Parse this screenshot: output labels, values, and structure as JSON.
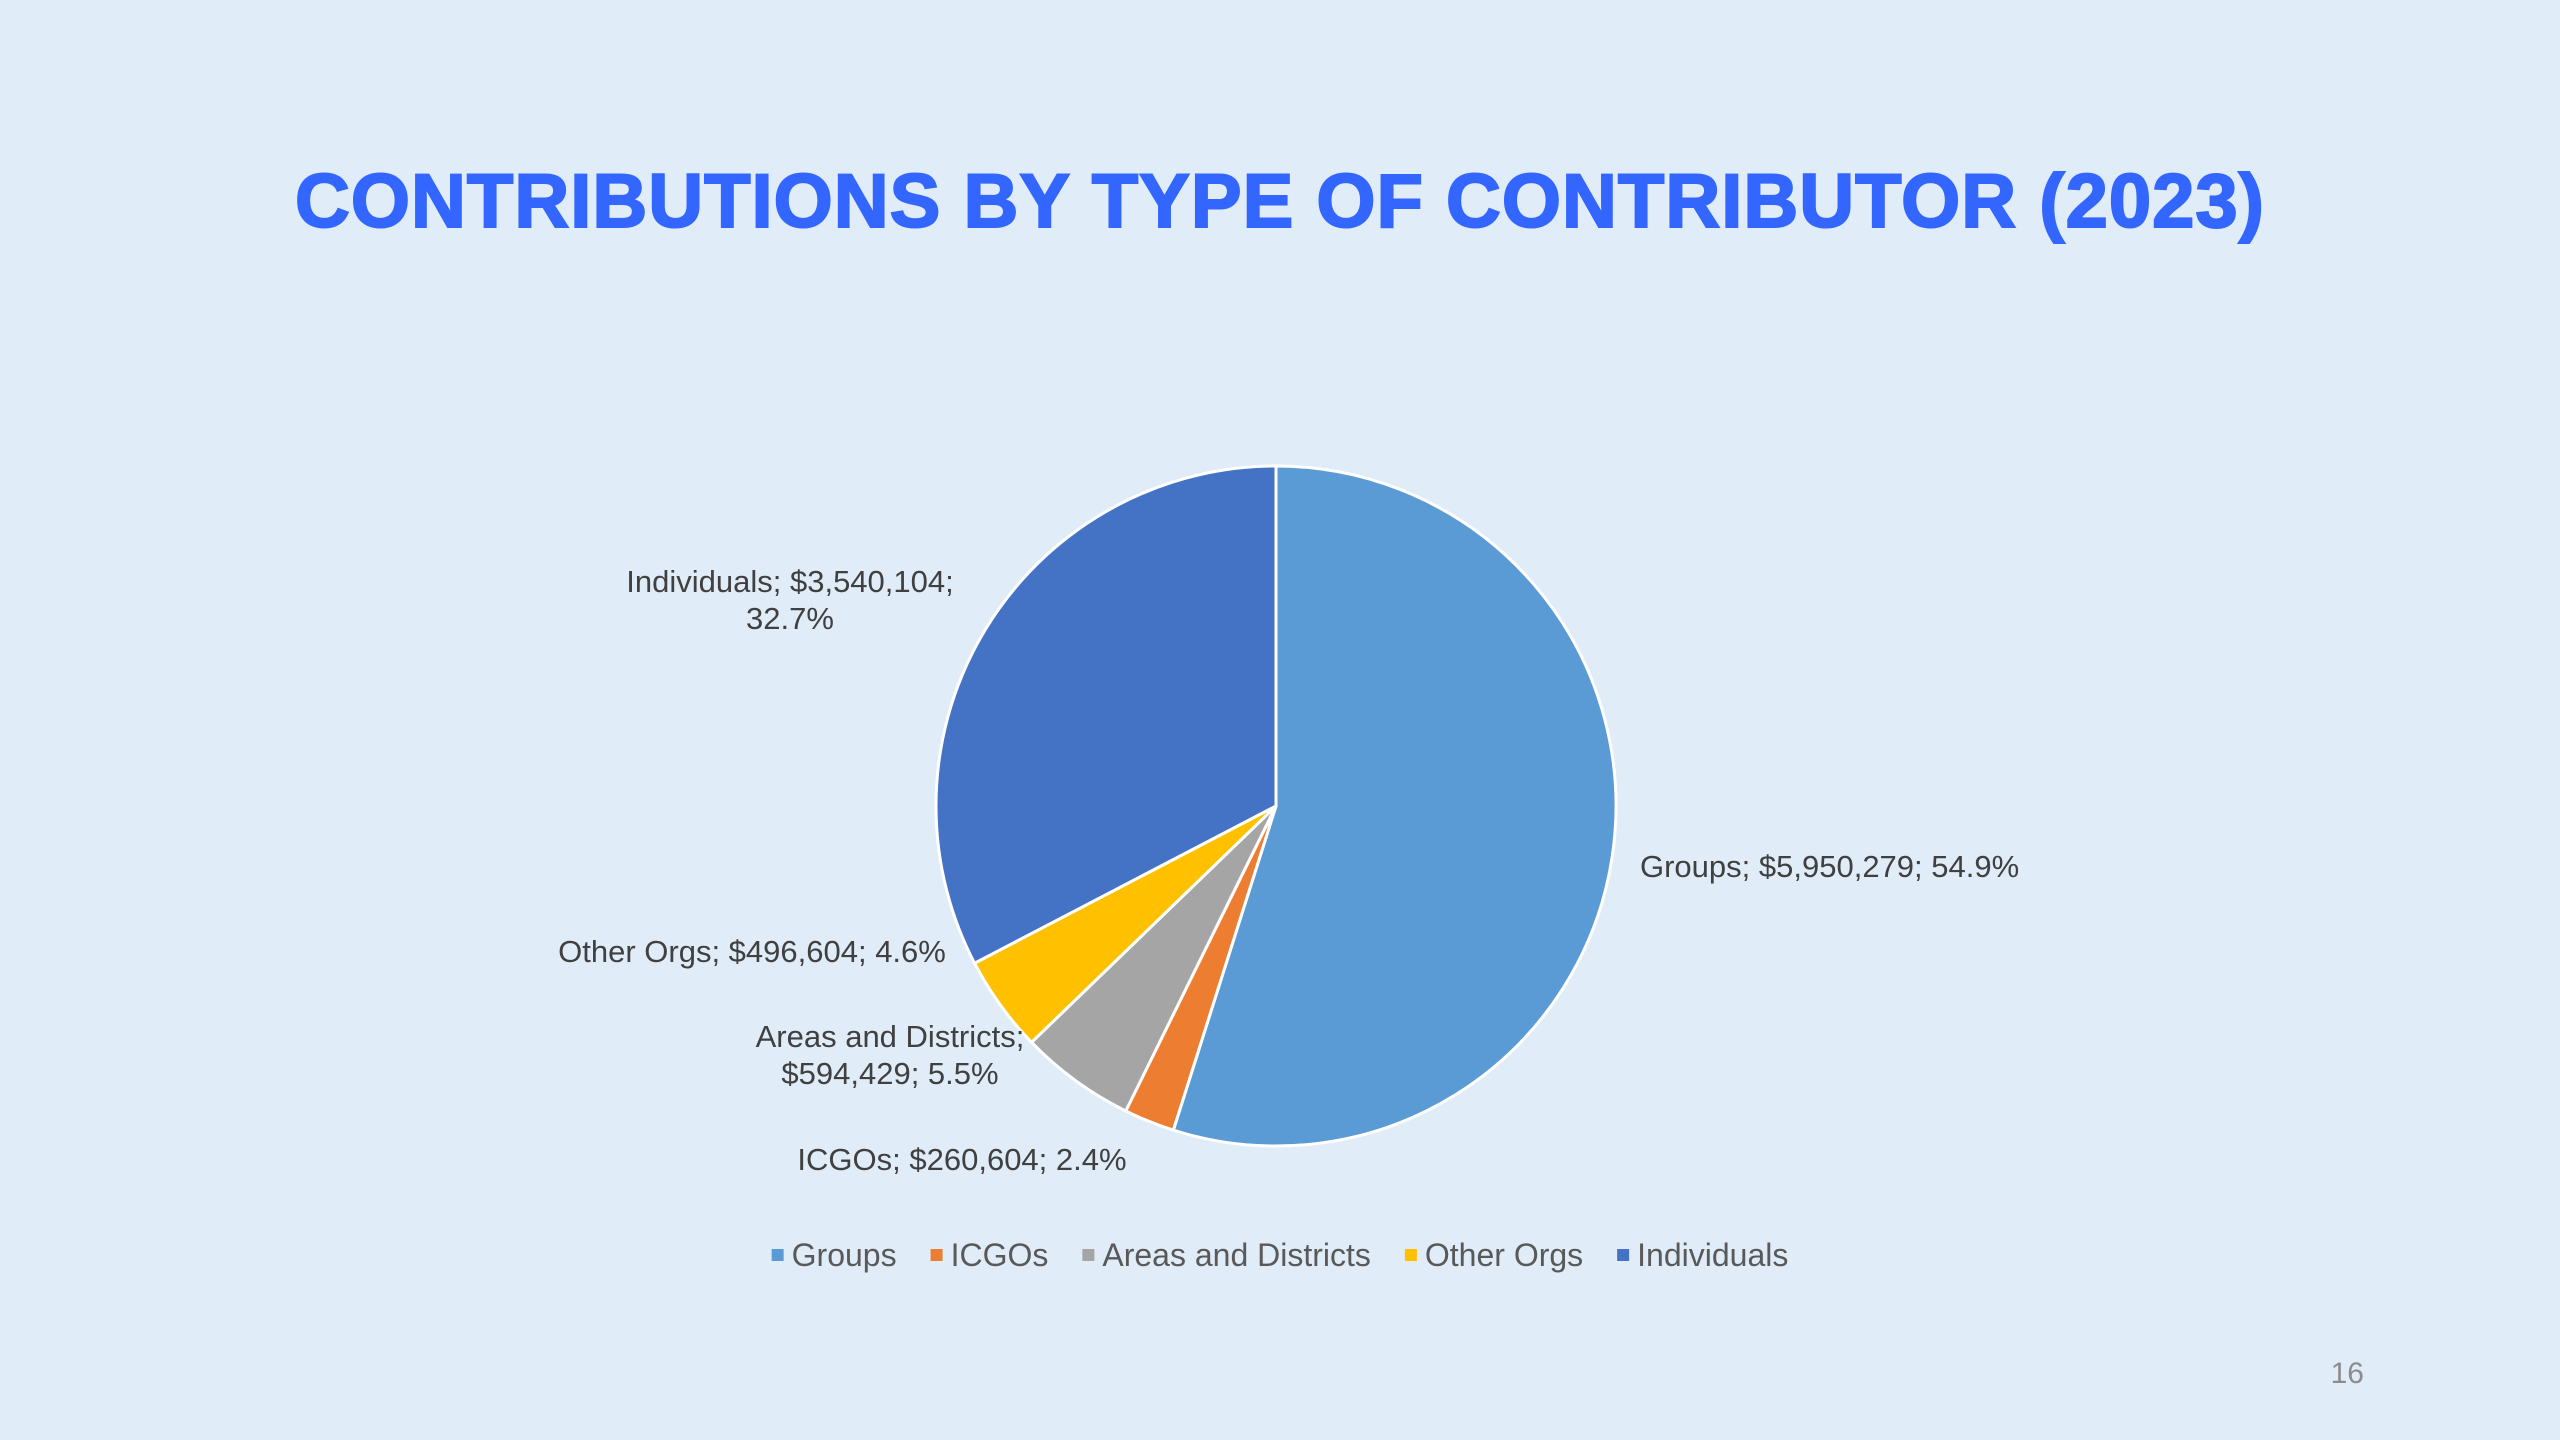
{
  "slide": {
    "title": "CONTRIBUTIONS BY TYPE OF CONTRIBUTOR (2023)",
    "page_number": "16",
    "title_color": "#3366ff",
    "background_color": "#e0ecf8"
  },
  "chart_data": {
    "type": "pie",
    "title": "",
    "legend_position": "bottom",
    "start_angle_deg": 0,
    "direction": "clockwise",
    "slices": [
      {
        "label": "Groups",
        "value": 5950279,
        "value_text": "$5,950,279",
        "percent": "54.9%",
        "percent_value": 54.9,
        "color": "#5b9bd5",
        "data_label_lines": [
          "Groups; $5,950,279; 54.9%"
        ]
      },
      {
        "label": "ICGOs",
        "value": 260604,
        "value_text": "$260,604",
        "percent": "2.4%",
        "percent_value": 2.4,
        "color": "#ed7d31",
        "data_label_lines": [
          "ICGOs; $260,604; 2.4%"
        ]
      },
      {
        "label": "Areas and Districts",
        "value": 594429,
        "value_text": "$594,429",
        "percent": "5.5%",
        "percent_value": 5.5,
        "color": "#a5a5a5",
        "data_label_lines": [
          "Areas and Districts;",
          "$594,429; 5.5%"
        ]
      },
      {
        "label": "Other Orgs",
        "value": 496604,
        "value_text": "$496,604",
        "percent": "4.6%",
        "percent_value": 4.6,
        "color": "#ffc000",
        "data_label_lines": [
          "Other Orgs; $496,604; 4.6%"
        ]
      },
      {
        "label": "Individuals",
        "value": 3540104,
        "value_text": "$3,540,104",
        "percent": "32.7%",
        "percent_value": 32.7,
        "color": "#4472c4",
        "data_label_lines": [
          "Individuals; $3,540,104;",
          "32.7%"
        ]
      }
    ]
  }
}
